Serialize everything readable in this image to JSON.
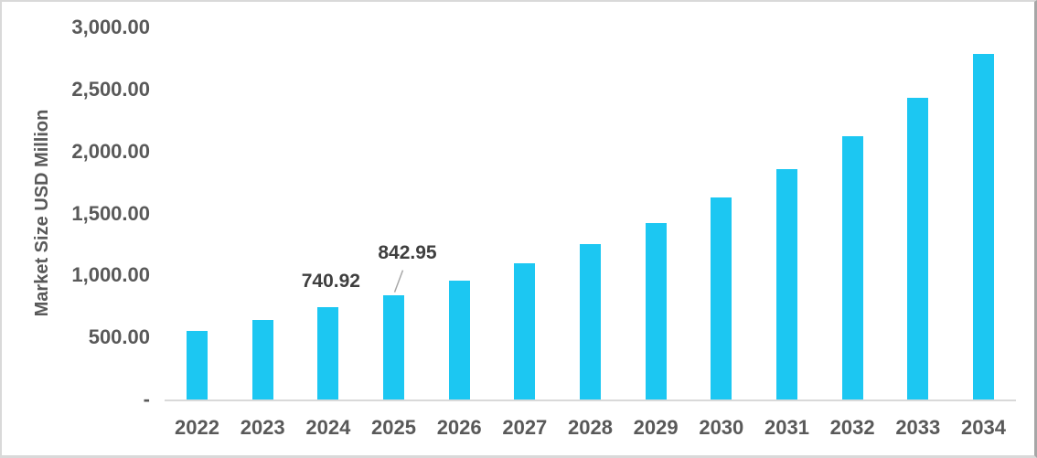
{
  "chart_data": {
    "type": "bar",
    "title": "",
    "ylabel": "Market Size USD Million",
    "xlabel": "",
    "categories": [
      "2022",
      "2023",
      "2024",
      "2025",
      "2026",
      "2027",
      "2028",
      "2029",
      "2030",
      "2031",
      "2032",
      "2033",
      "2034"
    ],
    "values": [
      550,
      640,
      740.92,
      842.95,
      960,
      1098,
      1250,
      1425,
      1630,
      1860,
      2125,
      2435,
      2785
    ],
    "ylim": [
      0,
      3000
    ],
    "y_ticks": [
      {
        "label": "3,000.00",
        "value": 3000
      },
      {
        "label": "2,500.00",
        "value": 2500
      },
      {
        "label": "2,000.00",
        "value": 2000
      },
      {
        "label": "1,500.00",
        "value": 1500
      },
      {
        "label": "1,000.00",
        "value": 1000
      },
      {
        "label": "500.00",
        "value": 500
      },
      {
        "label": "-",
        "value": 0
      }
    ],
    "data_labels": [
      {
        "category": "2024",
        "text": "740.92",
        "leader_line": false
      },
      {
        "category": "2025",
        "text": "842.95",
        "leader_line": true
      }
    ],
    "grid": false,
    "legend": false,
    "colors": {
      "bar": "#1cc7f2",
      "axis_text": "#595959",
      "data_label_text": "#3f3f3f",
      "axis_line": "#d9d9d9",
      "leader_line": "#a6a6a6"
    }
  }
}
